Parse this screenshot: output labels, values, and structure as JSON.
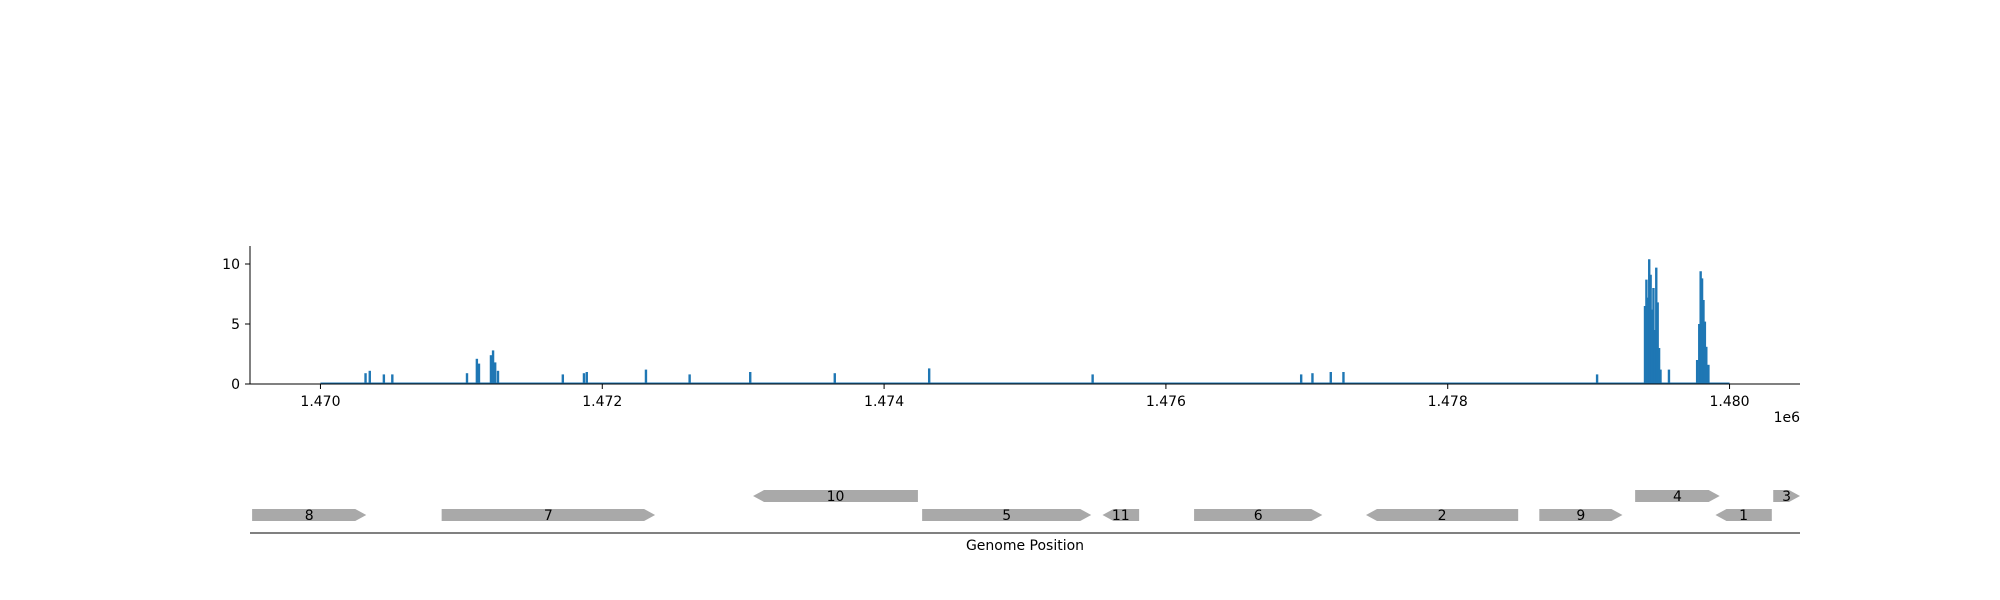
{
  "colors": {
    "signal": "#1f77b4",
    "gene": "#a9a9a9",
    "axis": "#000000"
  },
  "chart_data": [
    {
      "type": "line",
      "title": "",
      "xlabel": "",
      "ylabel": "",
      "x_offset_label": "1e6",
      "xlim": [
        1469500,
        1480500
      ],
      "ylim": [
        0,
        11.5
      ],
      "x_ticks": [
        1470000,
        1472000,
        1474000,
        1476000,
        1478000,
        1480000
      ],
      "x_tick_labels": [
        "1.470",
        "1.472",
        "1.474",
        "1.476",
        "1.478",
        "1.480"
      ],
      "y_ticks": [
        0,
        5,
        10
      ],
      "y_tick_labels": [
        "0",
        "5",
        "10"
      ],
      "baseline_range": [
        1470000,
        1480000
      ],
      "series": [
        {
          "color": "#1f77b4",
          "peaks": [
            [
              1470320,
              0.9
            ],
            [
              1470350,
              1.1
            ],
            [
              1470450,
              0.8
            ],
            [
              1470510,
              0.8
            ],
            [
              1471040,
              0.9
            ],
            [
              1471110,
              2.1
            ],
            [
              1471125,
              1.7
            ],
            [
              1471210,
              2.4
            ],
            [
              1471225,
              2.8
            ],
            [
              1471240,
              1.8
            ],
            [
              1471260,
              1.1
            ],
            [
              1471720,
              0.8
            ],
            [
              1471870,
              0.9
            ],
            [
              1471890,
              1.0
            ],
            [
              1472310,
              1.2
            ],
            [
              1472620,
              0.8
            ],
            [
              1473050,
              1.0
            ],
            [
              1473650,
              0.9
            ],
            [
              1474320,
              1.3
            ],
            [
              1475480,
              0.8
            ],
            [
              1476960,
              0.8
            ],
            [
              1477040,
              0.9
            ],
            [
              1477170,
              1.0
            ],
            [
              1477260,
              1.0
            ],
            [
              1479060,
              0.8
            ],
            [
              1479400,
              6.5
            ],
            [
              1479410,
              8.7
            ],
            [
              1479420,
              7.2
            ],
            [
              1479430,
              10.4
            ],
            [
              1479440,
              9.1
            ],
            [
              1479450,
              6.2
            ],
            [
              1479460,
              8.0
            ],
            [
              1479470,
              4.5
            ],
            [
              1479480,
              9.7
            ],
            [
              1479490,
              6.8
            ],
            [
              1479500,
              3.0
            ],
            [
              1479510,
              1.2
            ],
            [
              1479570,
              1.2
            ],
            [
              1479770,
              2.0
            ],
            [
              1479785,
              5.0
            ],
            [
              1479795,
              9.4
            ],
            [
              1479805,
              8.8
            ],
            [
              1479815,
              7.0
            ],
            [
              1479825,
              5.2
            ],
            [
              1479835,
              3.1
            ],
            [
              1479850,
              1.6
            ]
          ]
        }
      ]
    },
    {
      "type": "gene-track",
      "xlabel": "Genome Position",
      "xlim": [
        1469500,
        1480500
      ],
      "genes": [
        {
          "label": "8",
          "start": 1469515,
          "end": 1470325,
          "strand": "+",
          "row": 0
        },
        {
          "label": "7",
          "start": 1470860,
          "end": 1472375,
          "strand": "+",
          "row": 0
        },
        {
          "label": "10",
          "start": 1473070,
          "end": 1474240,
          "strand": "-",
          "row": 1
        },
        {
          "label": "5",
          "start": 1474270,
          "end": 1475470,
          "strand": "+",
          "row": 0
        },
        {
          "label": "11",
          "start": 1475550,
          "end": 1475810,
          "strand": "-",
          "row": 0
        },
        {
          "label": "6",
          "start": 1476200,
          "end": 1477110,
          "strand": "+",
          "row": 0
        },
        {
          "label": "2",
          "start": 1477420,
          "end": 1478500,
          "strand": "-",
          "row": 0
        },
        {
          "label": "9",
          "start": 1478650,
          "end": 1479240,
          "strand": "+",
          "row": 0
        },
        {
          "label": "4",
          "start": 1479330,
          "end": 1479930,
          "strand": "+",
          "row": 1
        },
        {
          "label": "1",
          "start": 1479900,
          "end": 1480300,
          "strand": "-",
          "row": 0
        },
        {
          "label": "3",
          "start": 1480310,
          "end": 1480500,
          "strand": "+",
          "row": 1
        }
      ]
    }
  ]
}
